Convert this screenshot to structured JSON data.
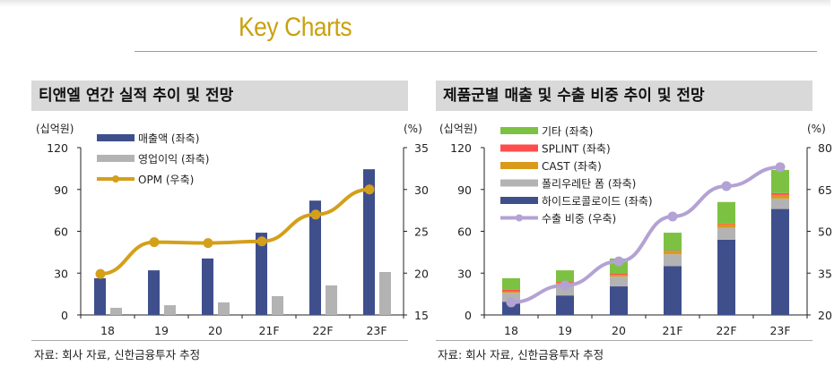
{
  "header": {
    "title": "Key Charts"
  },
  "colors": {
    "gold": "#c9a10f",
    "navy": "#3f4f8c",
    "gray": "#b3b3b3",
    "opm": "#d4a01a",
    "green": "#7dc142",
    "red": "#ff4d4d",
    "orange": "#d99a1b",
    "lavender": "#b3a2d4"
  },
  "source_note": "자료: 회사 자료, 신한금융투자 추정",
  "chart_data": [
    {
      "type": "bar",
      "title": "티앤엘 연간 실적 추이 및 전망",
      "left_unit": "(십억원)",
      "right_unit": "(%)",
      "categories": [
        "18",
        "19",
        "20",
        "21F",
        "22F",
        "23F"
      ],
      "ylim": [
        0,
        120
      ],
      "yticks": [
        "0",
        "30",
        "60",
        "90",
        "120"
      ],
      "y2lim": [
        15,
        35
      ],
      "y2ticks": [
        "15",
        "20",
        "25",
        "30",
        "35"
      ],
      "series": [
        {
          "name": "매출액 (좌축)",
          "kind": "bar",
          "axis": "left",
          "values": [
            26.3,
            32.0,
            40.5,
            59.0,
            82.0,
            104.5
          ]
        },
        {
          "name": "영업이익 (좌축)",
          "kind": "bar",
          "axis": "left",
          "values": [
            5.1,
            7.0,
            9.0,
            13.5,
            21.2,
            30.8
          ]
        },
        {
          "name": "OPM (우축)",
          "kind": "line",
          "axis": "right",
          "values": [
            19.9,
            23.7,
            23.6,
            23.8,
            27.0,
            30.0
          ]
        }
      ],
      "legend_position": "top-left"
    },
    {
      "type": "bar",
      "stacked": true,
      "title": "제품군별 매출 및 수출 비중 추이 및 전망",
      "left_unit": "(십억원)",
      "right_unit": "(%)",
      "categories": [
        "18",
        "19",
        "20",
        "21F",
        "22F",
        "23F"
      ],
      "ylim": [
        0,
        120
      ],
      "yticks": [
        "0",
        "30",
        "60",
        "90",
        "120"
      ],
      "y2lim": [
        20,
        80
      ],
      "y2ticks": [
        "20",
        "35",
        "50",
        "65",
        "80"
      ],
      "series": [
        {
          "name": "하이드로콜로이드 (좌축)",
          "kind": "stack",
          "values": [
            9.5,
            14.0,
            20.5,
            35.0,
            54.0,
            76.0
          ]
        },
        {
          "name": "폴리우레탄 폼 (좌축)",
          "kind": "stack",
          "values": [
            6.5,
            8.0,
            7.0,
            8.5,
            8.5,
            7.5
          ]
        },
        {
          "name": "CAST (좌축)",
          "kind": "stack",
          "values": [
            1.0,
            1.2,
            1.3,
            1.9,
            2.5,
            2.6
          ]
        },
        {
          "name": "SPLINT (좌축)",
          "kind": "stack",
          "values": [
            1.0,
            0.8,
            0.7,
            0.6,
            0.5,
            1.3
          ]
        },
        {
          "name": "기타 (좌축)",
          "kind": "stack",
          "values": [
            8.3,
            8.0,
            11.0,
            13.0,
            15.5,
            16.6
          ]
        },
        {
          "name": "수출 비중 (우축)",
          "kind": "line",
          "axis": "right",
          "values": [
            24.5,
            30.6,
            39.2,
            55.3,
            66.2,
            73.0
          ]
        }
      ],
      "legend_position": "top-left"
    }
  ]
}
